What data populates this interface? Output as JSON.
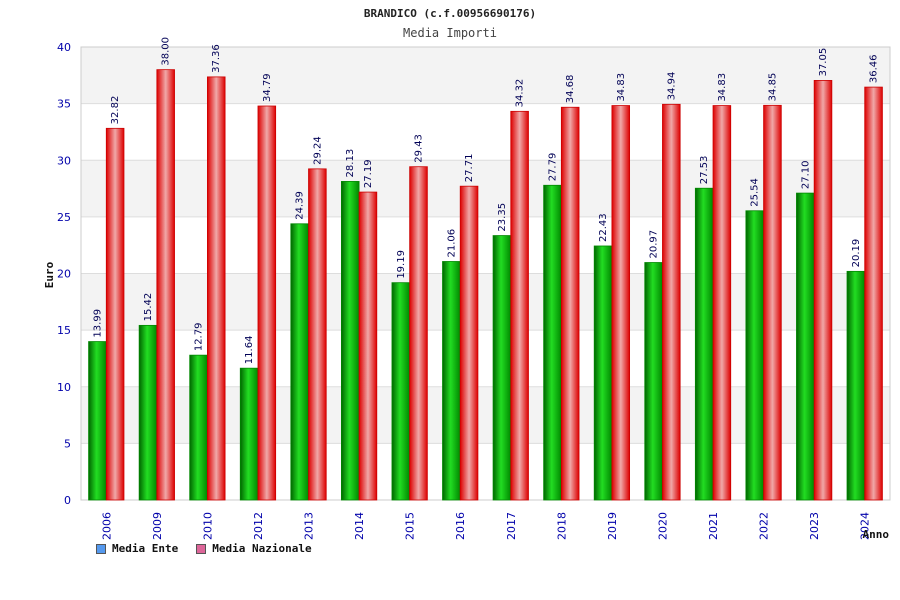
{
  "chart_data": {
    "type": "bar",
    "title": "BRANDICO (c.f.00956690176)",
    "subtitle": "Media Importi",
    "xlabel": "Anno",
    "ylabel": "Euro",
    "ylim": [
      0,
      40
    ],
    "yticks": [
      "0",
      "5",
      "10",
      "15",
      "20",
      "25",
      "30",
      "35",
      "40"
    ],
    "categories": [
      "2006",
      "2009",
      "2010",
      "2012",
      "2013",
      "2014",
      "2015",
      "2016",
      "2017",
      "2018",
      "2019",
      "2020",
      "2021",
      "2022",
      "2023",
      "2024"
    ],
    "series": [
      {
        "name": "Media Ente",
        "color": "#00cc00",
        "values": [
          13.99,
          15.42,
          12.79,
          11.64,
          24.39,
          28.13,
          19.19,
          21.06,
          23.35,
          27.79,
          22.43,
          20.97,
          27.53,
          25.54,
          27.1,
          20.19
        ],
        "labels": [
          "13.99",
          "15.42",
          "12.79",
          "11.64",
          "24.39",
          "28.13",
          "19.19",
          "21.06",
          "23.35",
          "27.79",
          "22.43",
          "20.97",
          "27.53",
          "25.54",
          "27.10",
          "20.19"
        ]
      },
      {
        "name": "Media Nazionale",
        "color": "#ee1111",
        "values": [
          32.82,
          38.0,
          37.36,
          34.79,
          29.24,
          27.19,
          29.43,
          27.71,
          34.32,
          34.68,
          34.83,
          34.94,
          34.83,
          34.85,
          37.05,
          36.46
        ],
        "labels": [
          "32.82",
          "38.00",
          "37.36",
          "34.79",
          "29.24",
          "27.19",
          "29.43",
          "27.71",
          "34.32",
          "34.68",
          "34.83",
          "34.94",
          "34.83",
          "34.85",
          "37.05",
          "36.46"
        ]
      }
    ],
    "legend": {
      "position": "bottom-left",
      "items": [
        {
          "label": "Media Ente",
          "color": "#5599ee"
        },
        {
          "label": "Media Nazionale",
          "color": "#dd6699"
        }
      ]
    },
    "grid": true
  }
}
